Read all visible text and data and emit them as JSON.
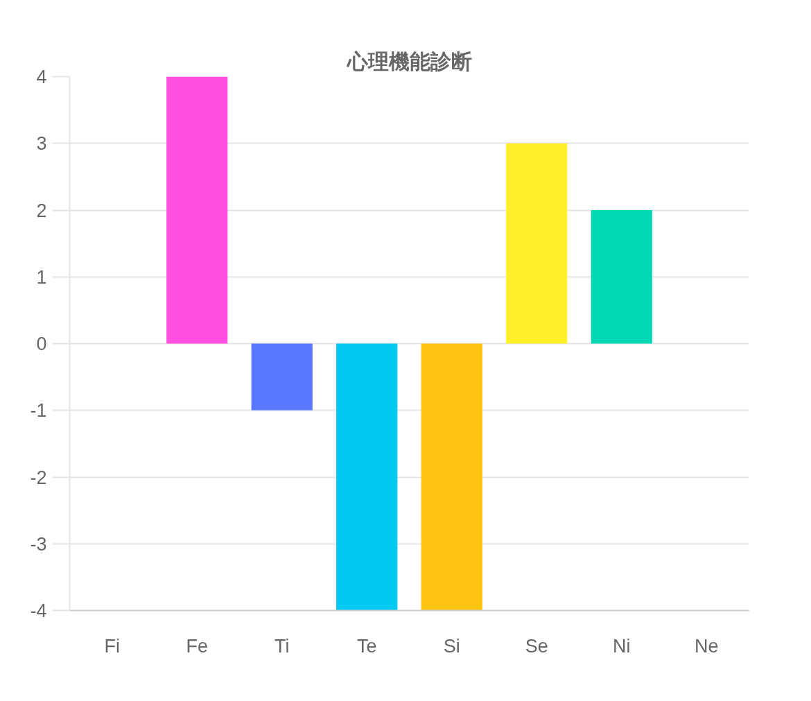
{
  "chart_data": {
    "type": "bar",
    "title": "心理機能診断",
    "categories": [
      "Fi",
      "Fe",
      "Ti",
      "Te",
      "Si",
      "Se",
      "Ni",
      "Ne"
    ],
    "values": [
      0,
      4,
      -1,
      -4,
      -4,
      3,
      2,
      0
    ],
    "colors": [
      null,
      "#ff50e0",
      "#5a78ff",
      "#00c8f0",
      "#ffc312",
      "#fff02a",
      "#00d8b4",
      null
    ],
    "ylim": [
      -4,
      4
    ],
    "yticks": [
      -4,
      -3,
      -2,
      -1,
      0,
      1,
      2,
      3,
      4
    ],
    "grid": "y"
  }
}
